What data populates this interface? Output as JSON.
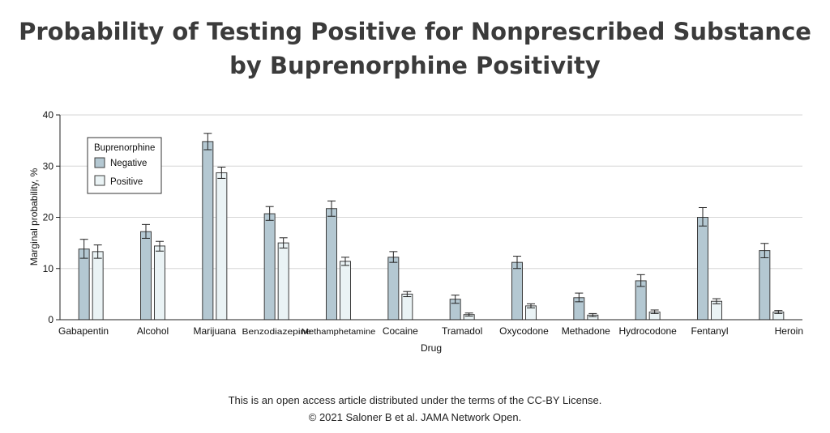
{
  "title": {
    "line1": "Probability of Testing Positive for Nonprescribed Substance",
    "line2": "by Buprenorphine Positivity"
  },
  "footer": {
    "line1": "This is an open access article distributed under the terms of the CC-BY License.",
    "line2": "© 2021 Saloner B et al. JAMA Network Open."
  },
  "colors": {
    "negative": "#b4c8d2",
    "positive": "#eaf3f5",
    "stroke": "#3c3c3c",
    "grid": "#d6d6d6"
  },
  "chart_data": {
    "type": "bar",
    "xlabel": "Drug",
    "ylabel": "Marginal probability, %",
    "ylim": [
      0,
      40
    ],
    "yticks": [
      0,
      10,
      20,
      30,
      40
    ],
    "grid": true,
    "legend": {
      "title": "Buprenorphine",
      "placement": "top-left"
    },
    "categories": [
      "Gabapentin",
      "Alcohol",
      "Marijuana",
      "Benzodiazepine",
      "Methamphetamine",
      "Cocaine",
      "Tramadol",
      "Oxycodone",
      "Methadone",
      "Hydrocodone",
      "Fentanyl",
      "Heroin"
    ],
    "series": [
      {
        "name": "Negative",
        "values": [
          13.8,
          17.2,
          34.8,
          20.7,
          21.7,
          12.2,
          4.0,
          11.2,
          4.3,
          7.6,
          20.0,
          13.5
        ],
        "err_low": [
          12.0,
          15.9,
          33.2,
          19.4,
          20.2,
          11.2,
          3.2,
          10.0,
          3.5,
          6.5,
          18.3,
          12.1
        ],
        "err_high": [
          15.7,
          18.6,
          36.4,
          22.1,
          23.2,
          13.3,
          4.8,
          12.4,
          5.2,
          8.8,
          21.9,
          14.9
        ]
      },
      {
        "name": "Positive",
        "values": [
          13.3,
          14.4,
          28.7,
          15.0,
          11.4,
          5.0,
          1.0,
          2.7,
          0.9,
          1.5,
          3.6,
          1.5
        ],
        "err_low": [
          12.0,
          13.4,
          27.6,
          14.0,
          10.6,
          4.5,
          0.7,
          2.3,
          0.6,
          1.2,
          3.1,
          1.2
        ],
        "err_high": [
          14.6,
          15.3,
          29.8,
          16.0,
          12.2,
          5.5,
          1.3,
          3.1,
          1.2,
          1.9,
          4.1,
          1.8
        ]
      }
    ]
  }
}
